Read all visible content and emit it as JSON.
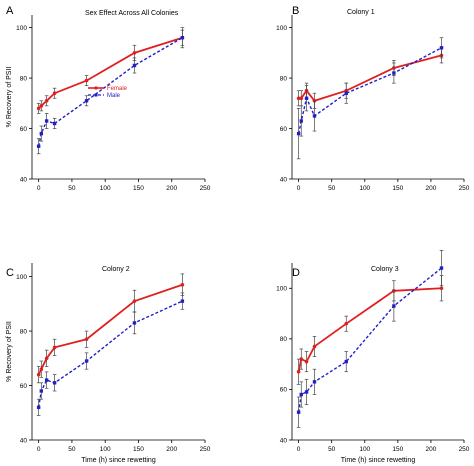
{
  "chart_data": [
    {
      "type": "line",
      "panel_letter": "A",
      "title": "Sex Effect Across All Colonies",
      "ylabel": "% Recovery of PSII",
      "xlabel": "",
      "xlim": [
        -10,
        250
      ],
      "ylim": [
        40,
        105
      ],
      "xticks": [
        0,
        50,
        100,
        150,
        200,
        250
      ],
      "yticks": [
        40,
        60,
        80,
        100
      ],
      "legend": {
        "position": "left-center",
        "entries": [
          "Female",
          "Male"
        ]
      },
      "series": [
        {
          "name": "Female",
          "color": "#e02020",
          "style": "solid",
          "marker": "circle",
          "x": [
            0,
            4,
            12,
            24,
            72,
            144,
            216
          ],
          "y": [
            68,
            69,
            71,
            74,
            79,
            90,
            96
          ],
          "err": [
            2,
            2,
            2,
            2,
            2,
            3,
            3
          ]
        },
        {
          "name": "Male",
          "color": "#2020c8",
          "style": "dashed",
          "marker": "square",
          "x": [
            0,
            4,
            12,
            24,
            72,
            144,
            216
          ],
          "y": [
            53,
            58,
            63,
            62,
            71,
            85,
            96
          ],
          "err": [
            3,
            3,
            3,
            2,
            2,
            3,
            4
          ]
        }
      ]
    },
    {
      "type": "line",
      "panel_letter": "B",
      "title": "Colony 1",
      "ylabel": "",
      "xlabel": "",
      "xlim": [
        -10,
        250
      ],
      "ylim": [
        40,
        105
      ],
      "xticks": [
        0,
        50,
        100,
        150,
        200,
        250
      ],
      "yticks": [
        40,
        60,
        80,
        100
      ],
      "series": [
        {
          "name": "Female",
          "color": "#e02020",
          "style": "solid",
          "marker": "circle",
          "x": [
            0,
            4,
            12,
            24,
            72,
            144,
            216
          ],
          "y": [
            72,
            72,
            75,
            71,
            75,
            84,
            89
          ],
          "err": [
            3,
            3,
            3,
            3,
            3,
            3,
            3
          ]
        },
        {
          "name": "Male",
          "color": "#2020c8",
          "style": "dashed",
          "marker": "square",
          "x": [
            0,
            4,
            12,
            24,
            72,
            144,
            216
          ],
          "y": [
            58,
            63,
            72,
            65,
            74,
            82,
            92
          ],
          "err": [
            10,
            6,
            5,
            6,
            4,
            4,
            4
          ]
        }
      ]
    },
    {
      "type": "line",
      "panel_letter": "C",
      "title": "Colony 2",
      "ylabel": "% Recovery of PSII",
      "xlabel": "Time (h) since rewetting",
      "xlim": [
        -10,
        250
      ],
      "ylim": [
        40,
        105
      ],
      "xticks": [
        0,
        50,
        100,
        150,
        200,
        250
      ],
      "yticks": [
        40,
        60,
        80,
        100
      ],
      "series": [
        {
          "name": "Female",
          "color": "#e02020",
          "style": "solid",
          "marker": "circle",
          "x": [
            0,
            4,
            12,
            24,
            72,
            144,
            216
          ],
          "y": [
            64,
            66,
            70,
            74,
            77,
            91,
            97
          ],
          "err": [
            3,
            3,
            3,
            3,
            3,
            4,
            4
          ]
        },
        {
          "name": "Male",
          "color": "#2020c8",
          "style": "dashed",
          "marker": "square",
          "x": [
            0,
            4,
            12,
            24,
            72,
            144,
            216
          ],
          "y": [
            52,
            58,
            62,
            61,
            69,
            83,
            91
          ],
          "err": [
            3,
            3,
            3,
            3,
            3,
            4,
            3
          ]
        }
      ]
    },
    {
      "type": "line",
      "panel_letter": "D",
      "title": "Colony 3",
      "ylabel": "",
      "xlabel": "Time (h) since rewetting",
      "xlim": [
        -10,
        250
      ],
      "ylim": [
        40,
        110
      ],
      "xticks": [
        0,
        50,
        100,
        150,
        200,
        250
      ],
      "yticks": [
        40,
        60,
        80,
        100
      ],
      "series": [
        {
          "name": "Female",
          "color": "#e02020",
          "style": "solid",
          "marker": "circle",
          "x": [
            0,
            4,
            12,
            24,
            72,
            144,
            216
          ],
          "y": [
            67,
            72,
            71,
            77,
            86,
            99,
            100
          ],
          "err": [
            5,
            4,
            4,
            4,
            3,
            4,
            5
          ]
        },
        {
          "name": "Male",
          "color": "#2020c8",
          "style": "dashed",
          "marker": "square",
          "x": [
            0,
            4,
            12,
            24,
            72,
            144,
            216
          ],
          "y": [
            51,
            58,
            59,
            63,
            71,
            93,
            108
          ],
          "err": [
            6,
            5,
            5,
            5,
            4,
            6,
            7
          ]
        }
      ]
    }
  ]
}
